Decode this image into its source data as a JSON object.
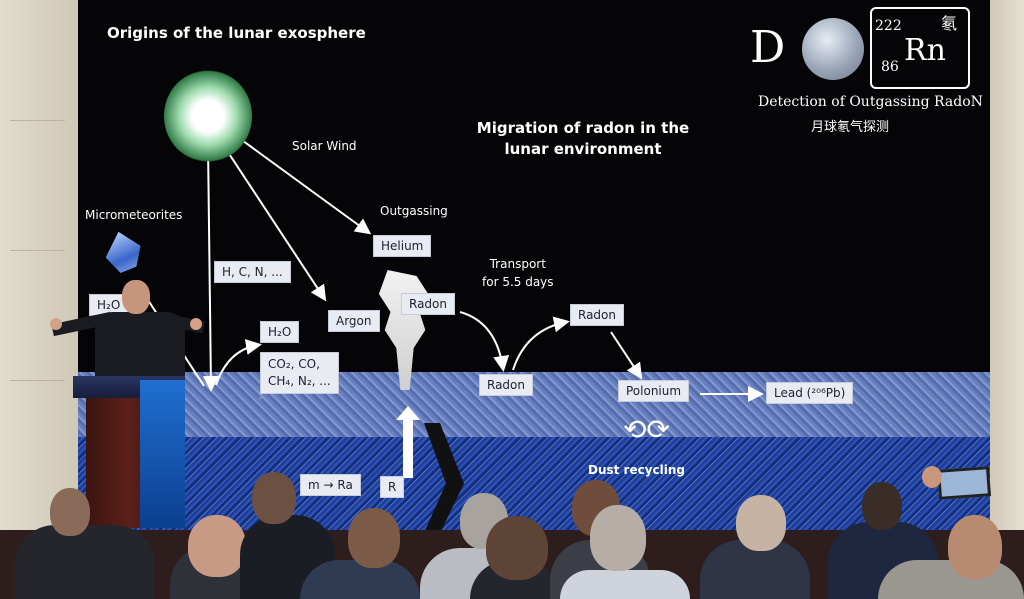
{
  "slide": {
    "heading_left": "Origins of the lunar exosphere",
    "heading_center": "Migration of radon in the lunar environment",
    "solar_wind": "Solar Wind",
    "micrometeorites": "Micrometeorites",
    "outgassing": "Outgassing",
    "transport": "Transport\nfor 5.5 days",
    "dust_recycling": "Dust recycling",
    "boxes": {
      "helium": "Helium",
      "hcn": "H, C, N, ...",
      "h2o_left": "H₂O",
      "h2o_center": "H₂O",
      "argon": "Argon",
      "radon_plume": "Radon",
      "gases": "CO₂, CO,\nCH₄, N₂, ...",
      "radon_ground": "Radon",
      "radon_hop": "Radon",
      "polonium": "Polonium",
      "lead": "Lead (²⁰⁶Pb)",
      "radium_partial": "m → Ra",
      "radon_bottom": "R"
    }
  },
  "logo": {
    "letter_d": "D",
    "mass_number": "222",
    "atomic_number": "86",
    "symbol": "Rn",
    "chinese_char": "氡",
    "tagline": "Detection of Outgassing RadoN",
    "chinese_tagline": "月球氡气探测"
  },
  "colors": {
    "screen_bg": "#050507",
    "regolith_light": "#6e86c9",
    "regolith_dark": "#1f3f9a",
    "label_box": "#e9ebf2"
  }
}
